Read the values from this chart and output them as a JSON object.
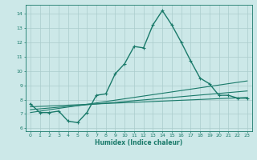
{
  "title": "",
  "xlabel": "Humidex (Indice chaleur)",
  "ylabel": "",
  "bg_color": "#cce8e8",
  "grid_color": "#aacccc",
  "line_color": "#1a7a6a",
  "xlim": [
    -0.5,
    23.5
  ],
  "ylim": [
    5.8,
    14.6
  ],
  "yticks": [
    6,
    7,
    8,
    9,
    10,
    11,
    12,
    13,
    14
  ],
  "xticks": [
    0,
    1,
    2,
    3,
    4,
    5,
    6,
    7,
    8,
    9,
    10,
    11,
    12,
    13,
    14,
    15,
    16,
    17,
    18,
    19,
    20,
    21,
    22,
    23
  ],
  "lines": [
    {
      "x": [
        0,
        1,
        2,
        3,
        4,
        5,
        6,
        7,
        8,
        9,
        10,
        11,
        12,
        13,
        14,
        15,
        16,
        17,
        18,
        19,
        20,
        21,
        22,
        23
      ],
      "y": [
        7.7,
        7.1,
        7.1,
        7.2,
        6.5,
        6.4,
        7.1,
        8.3,
        8.4,
        9.8,
        10.5,
        11.7,
        11.6,
        13.2,
        14.2,
        13.2,
        12.0,
        10.7,
        9.5,
        9.1,
        8.3,
        8.3,
        8.1,
        8.1
      ],
      "marker": "+",
      "markersize": 3.0,
      "linewidth": 1.0,
      "linestyle": "-"
    },
    {
      "x": [
        0,
        23
      ],
      "y": [
        7.5,
        8.15
      ],
      "marker": null,
      "markersize": 0,
      "linewidth": 0.8,
      "linestyle": "-"
    },
    {
      "x": [
        0,
        23
      ],
      "y": [
        7.3,
        8.6
      ],
      "marker": null,
      "markersize": 0,
      "linewidth": 0.8,
      "linestyle": "-"
    },
    {
      "x": [
        0,
        23
      ],
      "y": [
        7.1,
        9.3
      ],
      "marker": null,
      "markersize": 0,
      "linewidth": 0.8,
      "linestyle": "-"
    }
  ]
}
